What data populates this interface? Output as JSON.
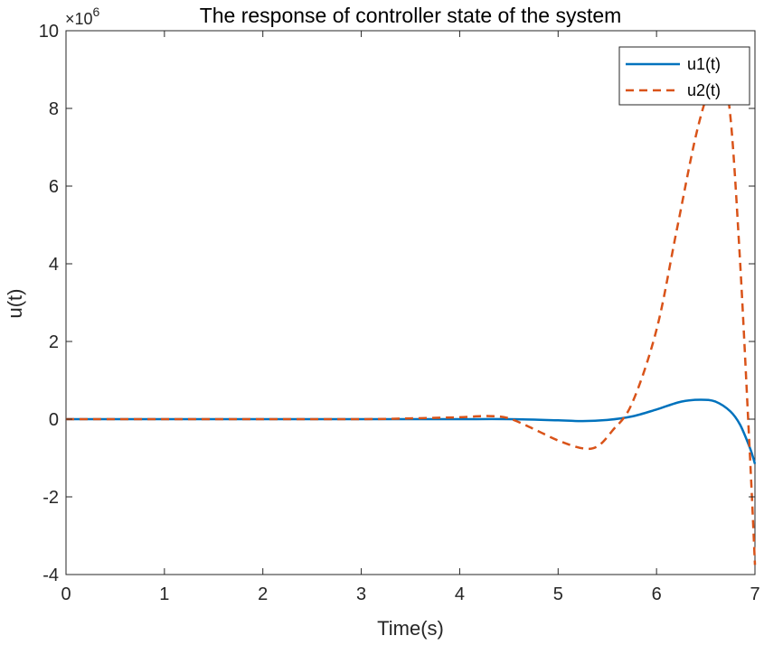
{
  "chart_data": {
    "type": "line",
    "title": "The response of controller state of the system",
    "xlabel": "Time(s)",
    "ylabel": "u(t)",
    "y_exponent_base": "×10",
    "y_exponent": "6",
    "xlim": [
      0,
      7
    ],
    "ylim": [
      -4,
      10
    ],
    "xticks": [
      "0",
      "1",
      "2",
      "3",
      "4",
      "5",
      "6",
      "7"
    ],
    "yticks": [
      "-4",
      "-2",
      "0",
      "2",
      "4",
      "6",
      "8",
      "10"
    ],
    "legend_position": "top-right",
    "grid": false,
    "series": [
      {
        "name": "u1(t)",
        "color": "#0072BD",
        "style": "solid",
        "x": [
          0,
          1,
          2,
          3,
          3.5,
          4,
          4.5,
          5,
          5.25,
          5.5,
          5.75,
          6,
          6.25,
          6.45,
          6.6,
          6.75,
          6.85,
          6.95,
          7.0
        ],
        "y": [
          0,
          0,
          0,
          0,
          0,
          0,
          0,
          -0.03,
          -0.05,
          -0.02,
          0.07,
          0.25,
          0.45,
          0.5,
          0.45,
          0.2,
          -0.15,
          -0.75,
          -1.15
        ]
      },
      {
        "name": "u2(t)",
        "color": "#D95319",
        "style": "dashed",
        "x": [
          0,
          1,
          2,
          3,
          3.5,
          4,
          4.3,
          4.5,
          4.75,
          5,
          5.25,
          5.4,
          5.55,
          5.75,
          6,
          6.2,
          6.4,
          6.55,
          6.65,
          6.75,
          6.85,
          6.95,
          7.0
        ],
        "y": [
          0,
          0,
          0,
          0,
          0.02,
          0.05,
          0.08,
          0.02,
          -0.25,
          -0.55,
          -0.75,
          -0.7,
          -0.3,
          0.4,
          2.3,
          4.8,
          7.3,
          8.6,
          9.0,
          7.8,
          4.0,
          -1.0,
          -3.75
        ]
      }
    ]
  }
}
